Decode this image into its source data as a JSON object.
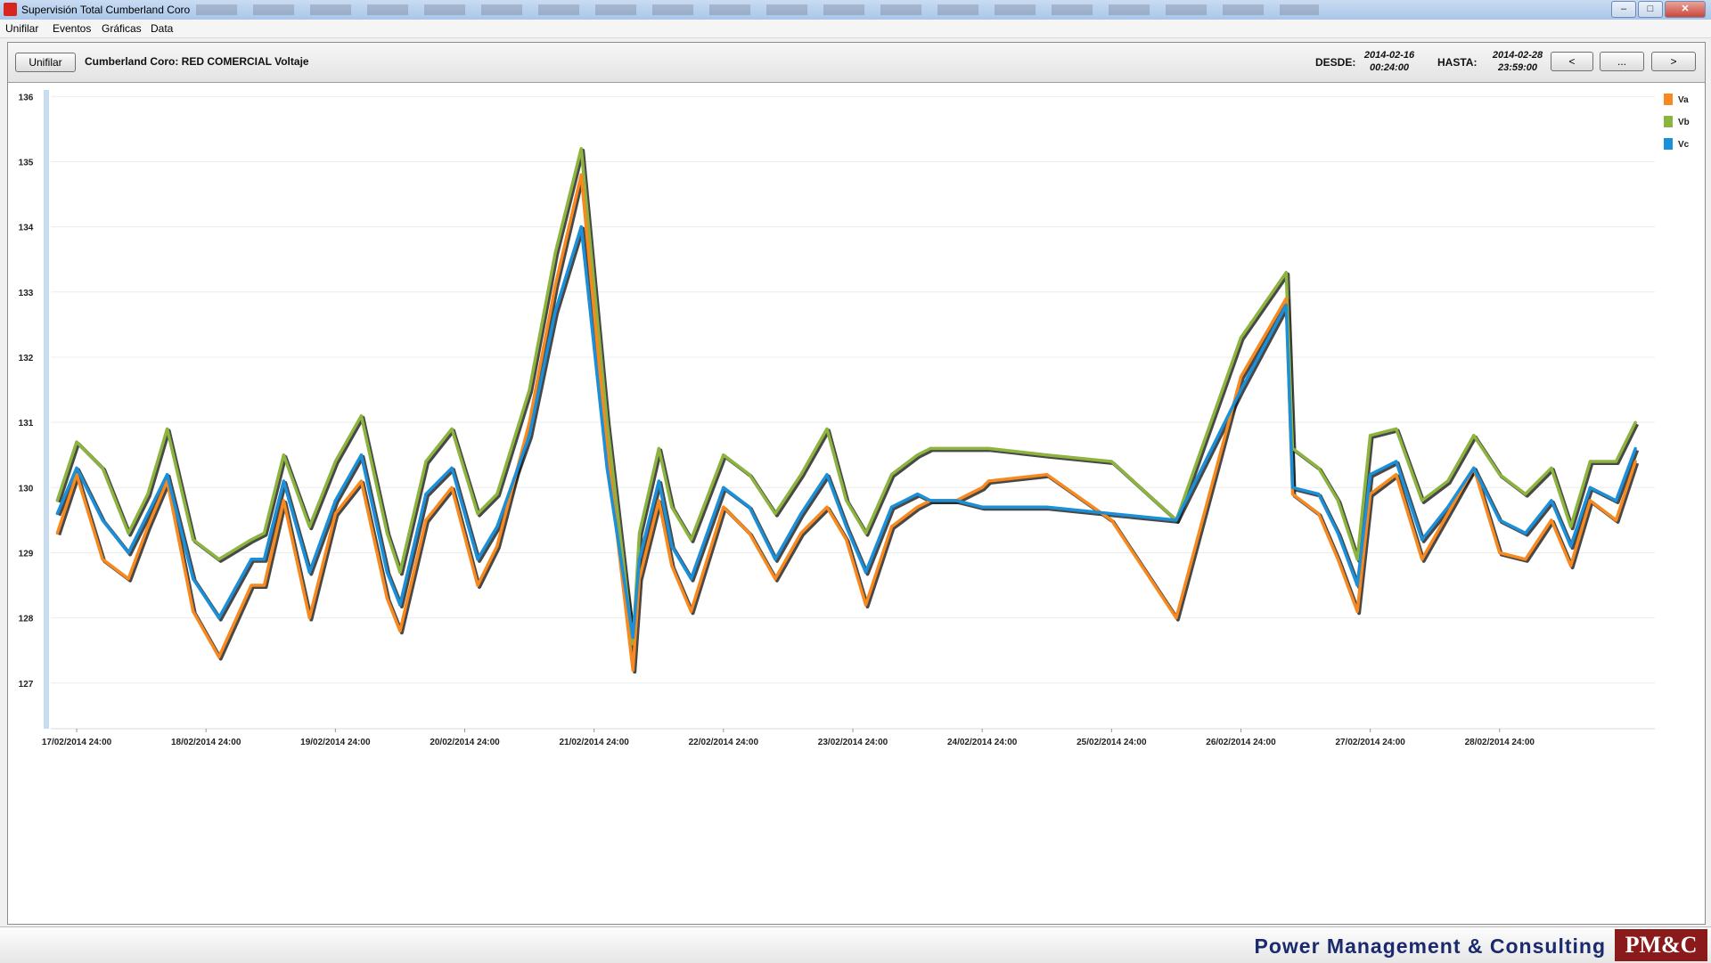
{
  "window": {
    "title": "Supervisión Total Cumberland Coro",
    "buttons": {
      "minimize": "–",
      "maximize": "□",
      "close": "✕"
    }
  },
  "menu": [
    "Unifilar",
    "Eventos",
    "Gráficas",
    "Data"
  ],
  "toolbar": {
    "unifilar_button": "Unifilar",
    "chart_title": "Cumberland Coro: RED COMERCIAL Voltaje",
    "desde_label": "DESDE:",
    "desde_date": "2014-02-16",
    "desde_time": "00:24:00",
    "hasta_label": "HASTA:",
    "hasta_date": "2014-02-28",
    "hasta_time": "23:59:00",
    "prev_button": "<",
    "more_button": "...",
    "next_button": ">"
  },
  "footer": {
    "company": "Power Management & Consulting",
    "logo": "PM&C"
  },
  "chart_data": {
    "type": "line",
    "title": "Cumberland Coro: RED COMERCIAL Voltaje",
    "xlabel": "",
    "ylabel": "",
    "ylim": [
      126.3,
      136.1
    ],
    "y_ticks": [
      127,
      128,
      129,
      130,
      131,
      132,
      133,
      134,
      135,
      136
    ],
    "x_range_days": [
      16.8,
      29.2
    ],
    "x_ticks": [
      {
        "day": 17,
        "label": "17/02/2014 24:00"
      },
      {
        "day": 18,
        "label": "18/02/2014 24:00"
      },
      {
        "day": 19,
        "label": "19/02/2014 24:00"
      },
      {
        "day": 20,
        "label": "20/02/2014 24:00"
      },
      {
        "day": 21,
        "label": "21/02/2014 24:00"
      },
      {
        "day": 22,
        "label": "22/02/2014 24:00"
      },
      {
        "day": 23,
        "label": "23/02/2014 24:00"
      },
      {
        "day": 24,
        "label": "24/02/2014 24:00"
      },
      {
        "day": 25,
        "label": "25/02/2014 24:00"
      },
      {
        "day": 26,
        "label": "26/02/2014 24:00"
      },
      {
        "day": 27,
        "label": "27/02/2014 24:00"
      },
      {
        "day": 28,
        "label": "28/02/2014 24:00"
      }
    ],
    "legend_position": "top-right",
    "grid": true,
    "series": [
      {
        "name": "Va",
        "color": "#f7891f",
        "x": [
          16.85,
          17.0,
          17.2,
          17.4,
          17.55,
          17.7,
          17.9,
          18.1,
          18.35,
          18.45,
          18.6,
          18.8,
          19.0,
          19.2,
          19.4,
          19.5,
          19.7,
          19.9,
          20.1,
          20.25,
          20.5,
          20.7,
          20.9,
          21.1,
          21.3,
          21.35,
          21.5,
          21.6,
          21.75,
          22.0,
          22.2,
          22.4,
          22.6,
          22.8,
          22.95,
          23.1,
          23.3,
          23.5,
          23.6,
          23.8,
          24.0,
          24.05,
          24.5,
          25.0,
          25.5,
          26.0,
          26.35,
          26.4,
          26.6,
          26.75,
          26.9,
          27.0,
          27.2,
          27.4,
          27.6,
          27.8,
          28.0,
          28.2,
          28.4,
          28.55,
          28.7,
          28.9,
          29.05
        ],
        "y": [
          129.3,
          130.2,
          128.9,
          128.6,
          129.4,
          130.1,
          128.1,
          127.4,
          128.5,
          128.5,
          129.8,
          128.0,
          129.6,
          130.1,
          128.3,
          127.8,
          129.5,
          130.0,
          128.5,
          129.1,
          131.0,
          133.1,
          134.8,
          130.6,
          127.2,
          128.6,
          129.8,
          128.8,
          128.1,
          129.7,
          129.3,
          128.6,
          129.3,
          129.7,
          129.2,
          128.2,
          129.4,
          129.7,
          129.8,
          129.8,
          130.0,
          130.1,
          130.2,
          129.5,
          128.0,
          131.7,
          132.9,
          129.9,
          129.6,
          128.9,
          128.1,
          129.9,
          130.2,
          128.9,
          129.6,
          130.3,
          129.0,
          128.9,
          129.5,
          128.8,
          129.8,
          129.5,
          130.4
        ]
      },
      {
        "name": "Vb",
        "color": "#8db43e",
        "x": [
          16.85,
          17.0,
          17.2,
          17.4,
          17.55,
          17.7,
          17.9,
          18.1,
          18.35,
          18.45,
          18.6,
          18.8,
          19.0,
          19.2,
          19.4,
          19.5,
          19.7,
          19.9,
          20.1,
          20.25,
          20.5,
          20.7,
          20.9,
          21.1,
          21.3,
          21.35,
          21.5,
          21.6,
          21.75,
          22.0,
          22.2,
          22.4,
          22.6,
          22.8,
          22.95,
          23.1,
          23.3,
          23.5,
          23.6,
          23.8,
          24.0,
          24.05,
          24.5,
          25.0,
          25.5,
          26.0,
          26.35,
          26.4,
          26.6,
          26.75,
          26.9,
          27.0,
          27.2,
          27.4,
          27.6,
          27.8,
          28.0,
          28.2,
          28.4,
          28.55,
          28.7,
          28.9,
          29.05
        ],
        "y": [
          129.8,
          130.7,
          130.3,
          129.3,
          129.9,
          130.9,
          129.2,
          128.9,
          129.2,
          129.3,
          130.5,
          129.4,
          130.4,
          131.1,
          129.3,
          128.7,
          130.4,
          130.9,
          129.6,
          129.9,
          131.5,
          133.6,
          135.2,
          131.0,
          127.6,
          129.3,
          130.6,
          129.7,
          129.2,
          130.5,
          130.2,
          129.6,
          130.2,
          130.9,
          129.8,
          129.3,
          130.2,
          130.5,
          130.6,
          130.6,
          130.6,
          130.6,
          130.5,
          130.4,
          129.5,
          132.3,
          133.3,
          130.6,
          130.3,
          129.8,
          128.9,
          130.8,
          130.9,
          129.8,
          130.1,
          130.8,
          130.2,
          129.9,
          130.3,
          129.4,
          130.4,
          130.4,
          131.0
        ]
      },
      {
        "name": "Vc",
        "color": "#1b8fd8",
        "x": [
          16.85,
          17.0,
          17.2,
          17.4,
          17.55,
          17.7,
          17.9,
          18.1,
          18.35,
          18.45,
          18.6,
          18.8,
          19.0,
          19.2,
          19.4,
          19.5,
          19.7,
          19.9,
          20.1,
          20.25,
          20.5,
          20.7,
          20.9,
          21.1,
          21.3,
          21.35,
          21.5,
          21.6,
          21.75,
          22.0,
          22.2,
          22.4,
          22.6,
          22.8,
          22.95,
          23.1,
          23.3,
          23.5,
          23.6,
          23.8,
          24.0,
          24.05,
          24.5,
          25.0,
          25.5,
          26.0,
          26.35,
          26.4,
          26.6,
          26.75,
          26.9,
          27.0,
          27.2,
          27.4,
          27.6,
          27.8,
          28.0,
          28.2,
          28.4,
          28.55,
          28.7,
          28.9,
          29.05
        ],
        "y": [
          129.6,
          130.3,
          129.5,
          129.0,
          129.6,
          130.2,
          128.6,
          128.0,
          128.9,
          128.9,
          130.1,
          128.7,
          129.8,
          130.5,
          128.7,
          128.2,
          129.9,
          130.3,
          128.9,
          129.4,
          130.8,
          132.7,
          134.0,
          130.3,
          127.7,
          128.9,
          130.1,
          129.1,
          128.6,
          130.0,
          129.7,
          128.9,
          129.6,
          130.2,
          129.4,
          128.7,
          129.7,
          129.9,
          129.8,
          129.8,
          129.7,
          129.7,
          129.7,
          129.6,
          129.5,
          131.5,
          132.8,
          130.0,
          129.9,
          129.3,
          128.5,
          130.2,
          130.4,
          129.2,
          129.7,
          130.3,
          129.5,
          129.3,
          129.8,
          129.1,
          130.0,
          129.8,
          130.6
        ]
      }
    ]
  }
}
